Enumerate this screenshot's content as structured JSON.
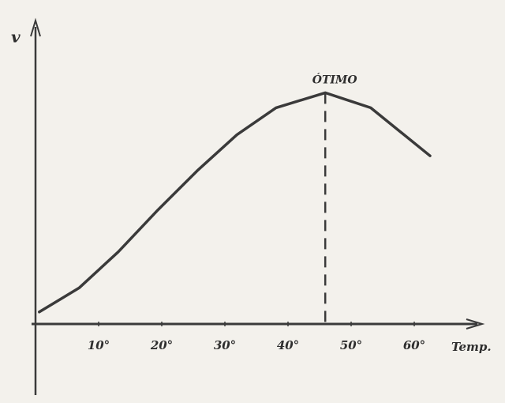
{
  "chart_data": {
    "type": "line",
    "y_label": "v",
    "x_label": "Temp.",
    "x": [
      0.6,
      6.9,
      13.1,
      19.4,
      25.6,
      31.9,
      38.1,
      45.9,
      53.1,
      62.5
    ],
    "series": [
      {
        "color": "#3a3a3a",
        "values": [
          4,
          12,
          24,
          38,
          51,
          63,
          72,
          77,
          72,
          56
        ]
      }
    ],
    "xlim": [
      0,
      70
    ],
    "ylim": [
      0,
      100
    ],
    "xticks": [
      {
        "value": 10,
        "label": "10°"
      },
      {
        "value": 20,
        "label": "20°"
      },
      {
        "value": 30,
        "label": "30°"
      },
      {
        "value": 40,
        "label": "40°"
      },
      {
        "value": 50,
        "label": "50°"
      },
      {
        "value": 60,
        "label": "60°"
      }
    ],
    "optimum": {
      "label": "ÓTIMO",
      "x": 45.9,
      "y": 77
    }
  }
}
